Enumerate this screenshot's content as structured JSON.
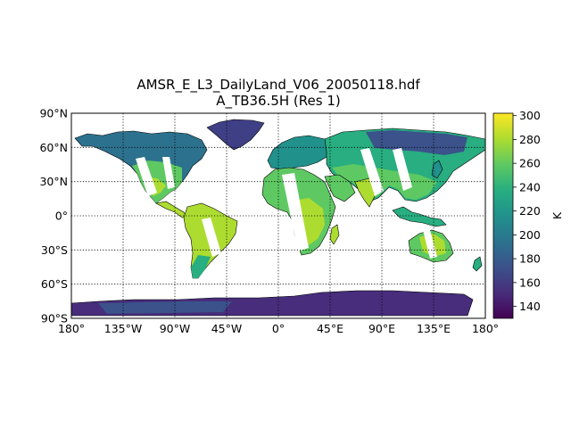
{
  "title_line1": "AMSR_E_L3_DailyLand_V06_20050118.hdf",
  "title_line2": "A_TB36.5H (Res 1)",
  "lat_labels": [
    "90°N",
    "60°N",
    "30°N",
    "0°",
    "30°S",
    "60°S",
    "90°S"
  ],
  "lon_labels": [
    "180°",
    "135°W",
    "90°W",
    "45°W",
    "0°",
    "45°E",
    "90°E",
    "135°E",
    "180°"
  ],
  "colorbar": {
    "label": "K",
    "ticks": [
      "140",
      "160",
      "180",
      "200",
      "220",
      "240",
      "260",
      "280",
      "300"
    ],
    "tick_values": [
      140,
      160,
      180,
      200,
      220,
      240,
      260,
      280,
      300
    ],
    "vmin": 130,
    "vmax": 302,
    "colormap": "viridis",
    "colors": [
      "#440154",
      "#472d7b",
      "#3b528b",
      "#2c728e",
      "#21918c",
      "#28ae80",
      "#5ec962",
      "#addc30",
      "#fde725"
    ]
  },
  "map": {
    "projection": "cylindrical",
    "lon_range": [
      -180,
      180
    ],
    "lat_range": [
      -90,
      90
    ],
    "gridlines": "dotted",
    "missing_data_color": "#ffffff",
    "coastline_color": "#000000"
  }
}
